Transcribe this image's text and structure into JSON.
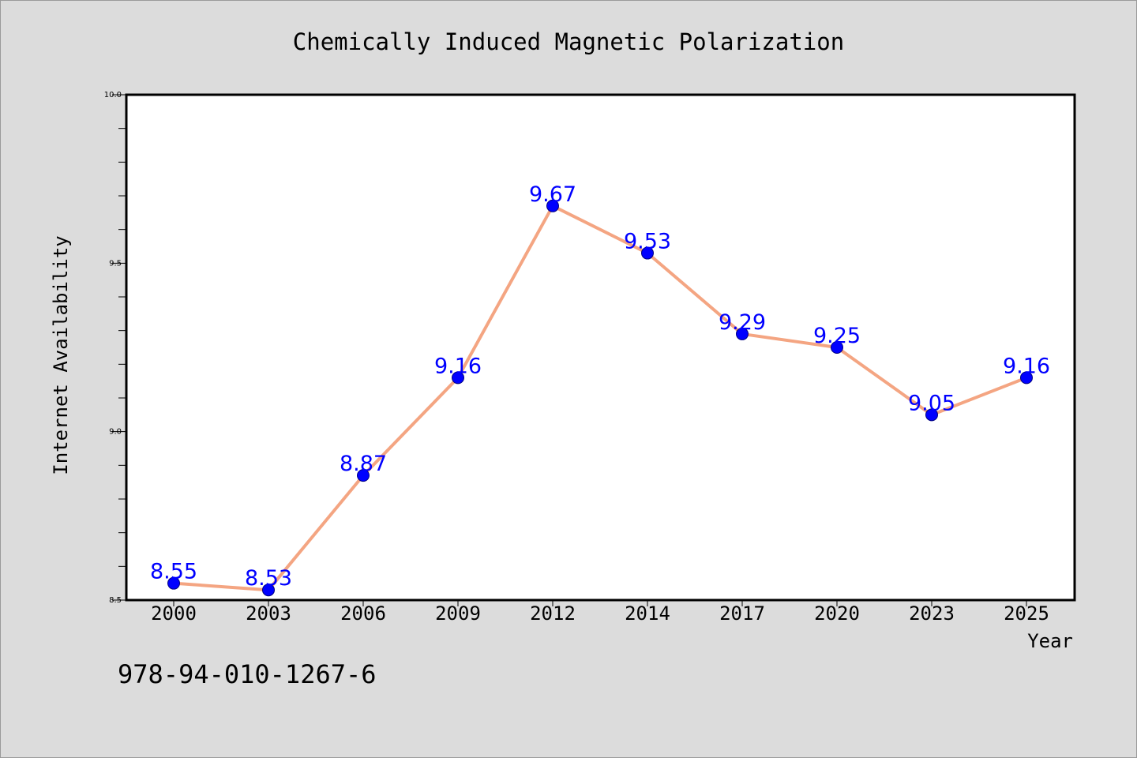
{
  "chart_data": {
    "type": "line",
    "title": "Chemically Induced Magnetic Polarization",
    "xlabel": "Year",
    "ylabel": "Internet Availability",
    "categories": [
      "2000",
      "2003",
      "2006",
      "2009",
      "2012",
      "2014",
      "2017",
      "2020",
      "2023",
      "2025"
    ],
    "series": [
      {
        "values": [
          8.55,
          8.53,
          8.87,
          9.16,
          9.67,
          9.53,
          9.29,
          9.25,
          9.05,
          9.16
        ]
      }
    ],
    "data_labels": [
      "8.55",
      "8.53",
      "8.87",
      "9.16",
      "9.67",
      "9.53",
      "9.29",
      "9.25",
      "9.05",
      "9.16"
    ],
    "ylim": [
      8.5,
      10.0
    ],
    "yticks": [
      "8.5",
      "9.0",
      "9.5",
      "10.0"
    ],
    "grid": false,
    "legend": "none",
    "colors": {
      "line": "#f4a582",
      "marker": "#0000ff",
      "marker_edge": "#000080",
      "data_label": "#0000ff",
      "background": "#dcdcdc",
      "plot_background": "#ffffff"
    }
  },
  "annotation": "978-94-010-1267-6"
}
